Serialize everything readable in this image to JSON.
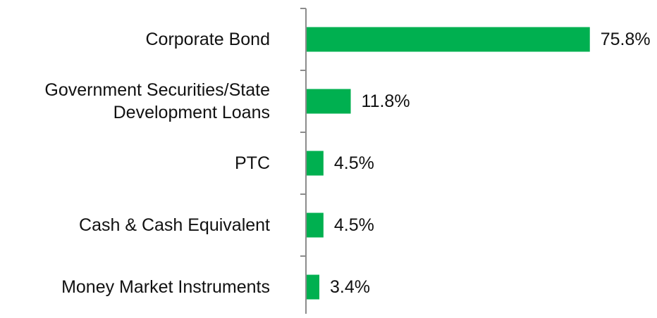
{
  "chart_data": {
    "type": "bar",
    "orientation": "horizontal",
    "categories": [
      "Corporate Bond",
      "Government Securities/State Development Loans",
      "PTC",
      "Cash & Cash Equivalent",
      "Money Market Instruments"
    ],
    "values": [
      75.8,
      11.8,
      4.5,
      4.5,
      3.4
    ],
    "value_labels": [
      "75.8%",
      "11.8%",
      "4.5%",
      "4.5%",
      "3.4%"
    ],
    "color": "#00b050"
  }
}
